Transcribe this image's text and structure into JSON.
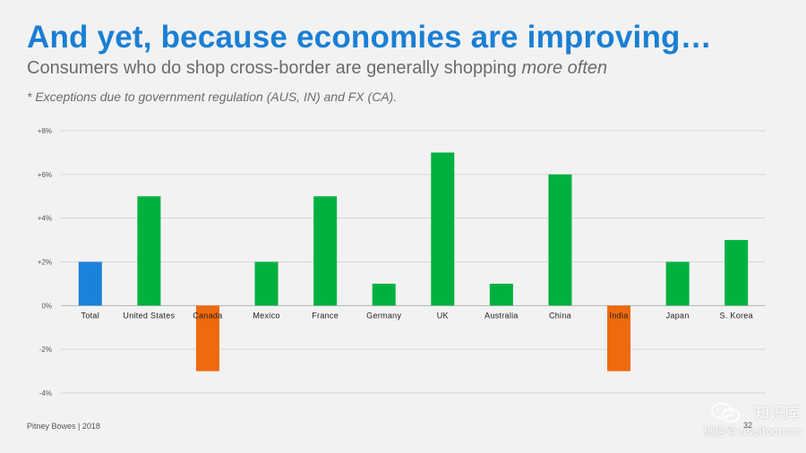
{
  "slide": {
    "title": "And yet, because economies are improving…",
    "subtitle_main": "Consumers who do shop cross-border are generally shopping ",
    "subtitle_emphasis": "more often",
    "note": "* Exceptions due to government regulation (AUS, IN) and FX (CA).",
    "footer": "Pitney Bowes | 2018",
    "page_number": "32"
  },
  "watermark": {
    "title": "知识库",
    "subtitle": "微信号:useitcomcn"
  },
  "chart_data": {
    "type": "bar",
    "title": "",
    "xlabel": "",
    "ylabel": "",
    "categories": [
      "Total",
      "United States",
      "Canada",
      "Mexico",
      "France",
      "Germany",
      "UK",
      "Australia",
      "China",
      "India",
      "Japan",
      "S. Korea"
    ],
    "values": [
      2,
      5,
      -3,
      2,
      5,
      1,
      7,
      1,
      6,
      -3,
      2,
      3
    ],
    "bar_colors": [
      "#1a82d9",
      "#00b140",
      "#ee6a0c",
      "#00b140",
      "#00b140",
      "#00b140",
      "#00b140",
      "#00b140",
      "#00b140",
      "#ee6a0c",
      "#00b140",
      "#00b140"
    ],
    "y_ticks": [
      8,
      6,
      4,
      2,
      0,
      -2,
      -4
    ],
    "y_tick_labels": [
      "+8%",
      "+6%",
      "+4%",
      "+2%",
      "0%",
      "-2%",
      "-4%"
    ],
    "ylim": [
      -4,
      8
    ],
    "grid": true,
    "legend": "none"
  }
}
